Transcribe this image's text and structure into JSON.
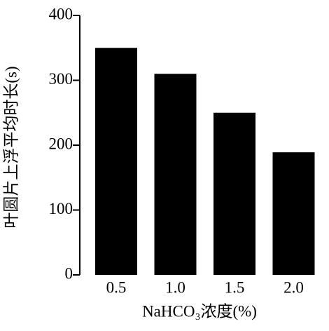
{
  "chart_data": {
    "type": "bar",
    "x_label": "NaHCO₃浓度(%)",
    "y_label": "叶圆片上浮平均时长(s)",
    "categories": [
      "0.5",
      "1.0",
      "1.5",
      "2.0"
    ],
    "values": [
      350,
      310,
      250,
      189
    ],
    "color": "#000000",
    "ylim": [
      0,
      400
    ],
    "yticks": [
      0,
      100,
      200,
      300,
      400
    ],
    "grid": false
  }
}
